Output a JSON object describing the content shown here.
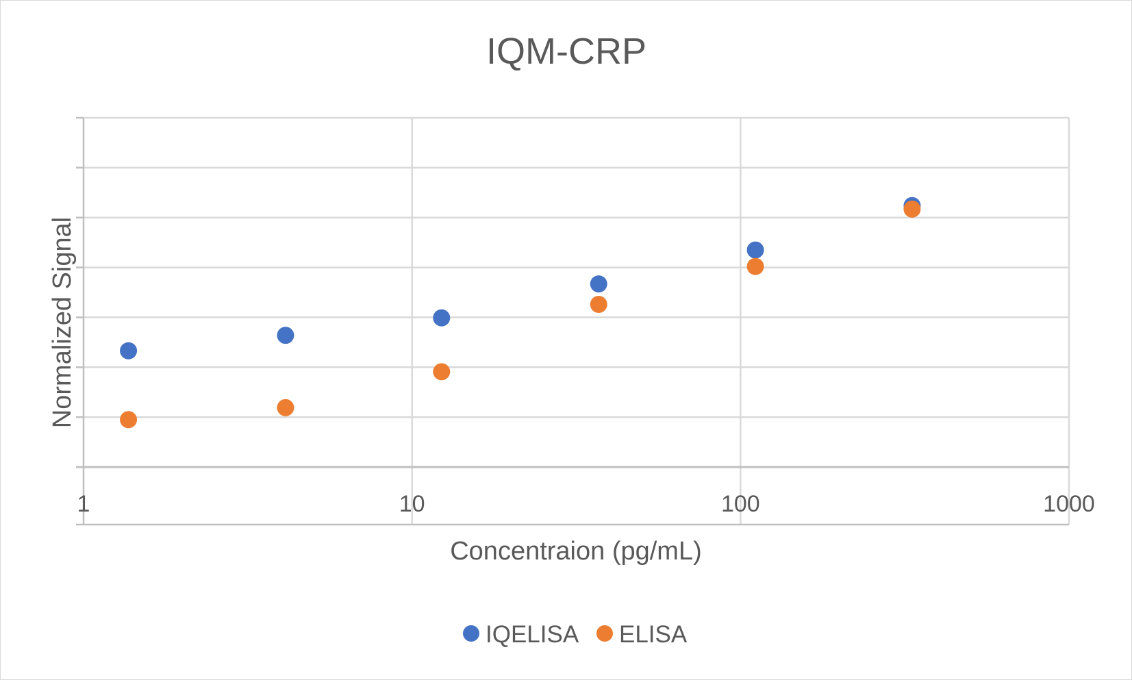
{
  "chart_data": {
    "type": "scatter",
    "title": "IQM-CRP",
    "xlabel": "Concentraion (pg/mL)",
    "ylabel": "Normalized Signal",
    "x_scale": "log",
    "xlim": [
      1,
      1000
    ],
    "x_ticks": [
      1,
      10,
      100,
      1000
    ],
    "x_tick_labels": [
      "1",
      "10",
      "100",
      "1000"
    ],
    "ylim": [
      0,
      7
    ],
    "y_grid_levels": [
      1,
      2,
      3,
      4,
      5,
      6,
      7
    ],
    "y_tick_labels_visible": false,
    "grid": true,
    "legend_position": "bottom",
    "series": [
      {
        "name": "IQELISA",
        "color": "#4472C4",
        "x": [
          1.37,
          4.12,
          12.3,
          37.0,
          111.0,
          333.0
        ],
        "y": [
          2.33,
          2.64,
          2.99,
          3.67,
          4.35,
          5.24
        ]
      },
      {
        "name": "ELISA",
        "color": "#ED7D31",
        "x": [
          1.37,
          4.12,
          12.3,
          37.0,
          111.0,
          333.0
        ],
        "y": [
          0.95,
          1.19,
          1.91,
          3.26,
          4.02,
          5.17
        ]
      }
    ]
  }
}
